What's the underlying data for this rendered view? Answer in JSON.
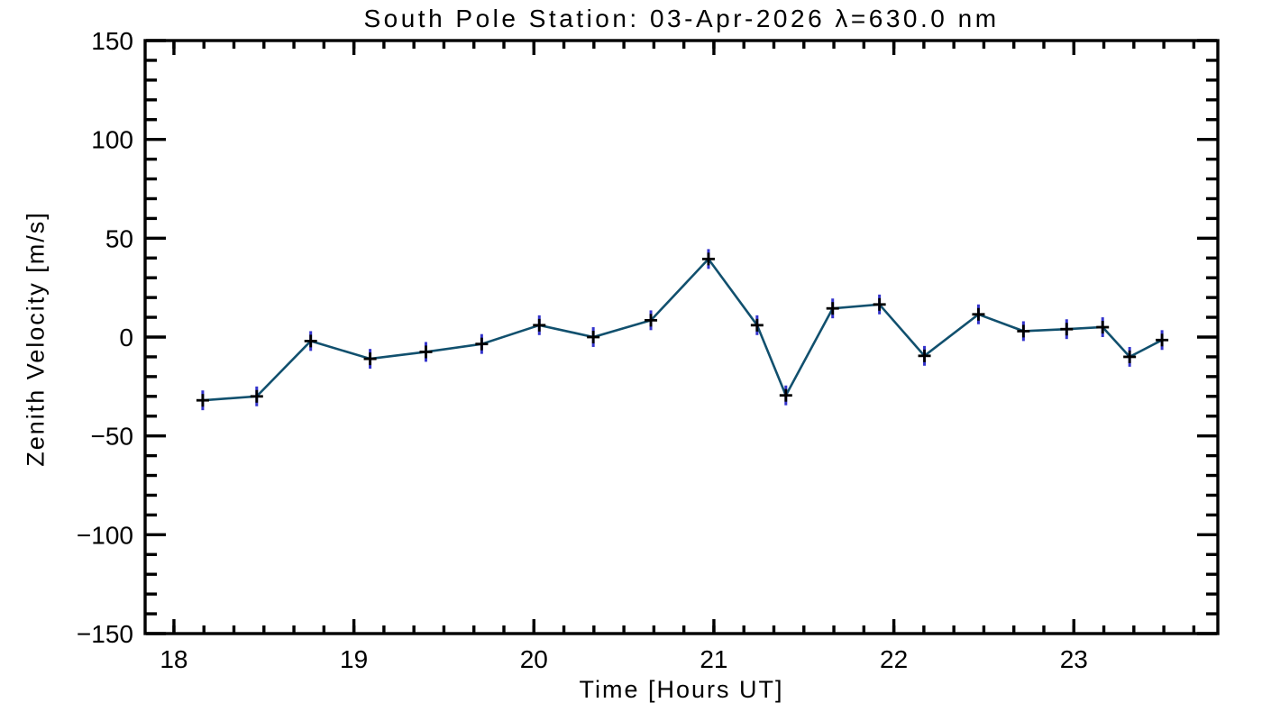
{
  "chart_data": {
    "type": "line",
    "title": "South Pole Station: 03-Apr-2026 λ=630.0 nm",
    "xlabel": "Time [Hours UT]",
    "ylabel": "Zenith Velocity [m/s]",
    "xlim": [
      17.84,
      23.8
    ],
    "ylim": [
      -150,
      150
    ],
    "x_major_ticks": [
      18,
      19,
      20,
      21,
      22,
      23
    ],
    "y_major_ticks": [
      -150,
      -100,
      -50,
      0,
      50,
      100,
      150
    ],
    "x_minor_interval_hours": 0.166667,
    "y_minor_interval": 10,
    "grid": "off",
    "legend": "none",
    "marker": "plus",
    "error_bars": "vertical",
    "colors": {
      "background": "#ffffff",
      "axis": "#000000",
      "line": "#11506e",
      "error_bar": "#3333cc",
      "marker": "#000000"
    },
    "series": [
      {
        "name": "zenith-velocity",
        "x": [
          18.16,
          18.46,
          18.76,
          19.09,
          19.4,
          19.71,
          20.03,
          20.33,
          20.65,
          20.97,
          21.24,
          21.4,
          21.66,
          21.92,
          22.17,
          22.47,
          22.72,
          22.96,
          23.16,
          23.31,
          23.49
        ],
        "y": [
          -32,
          -30,
          -2,
          -11,
          -7.5,
          -3.5,
          6,
          0,
          8.5,
          39.5,
          6,
          -29.5,
          14.5,
          16.5,
          -9.5,
          11.5,
          3,
          4,
          5,
          -10,
          -1.5
        ],
        "yerr": [
          5,
          5,
          5,
          5,
          5,
          5,
          5,
          5,
          5,
          5,
          5,
          5,
          5,
          5,
          5,
          5,
          5,
          5,
          5,
          5,
          5
        ]
      }
    ]
  }
}
